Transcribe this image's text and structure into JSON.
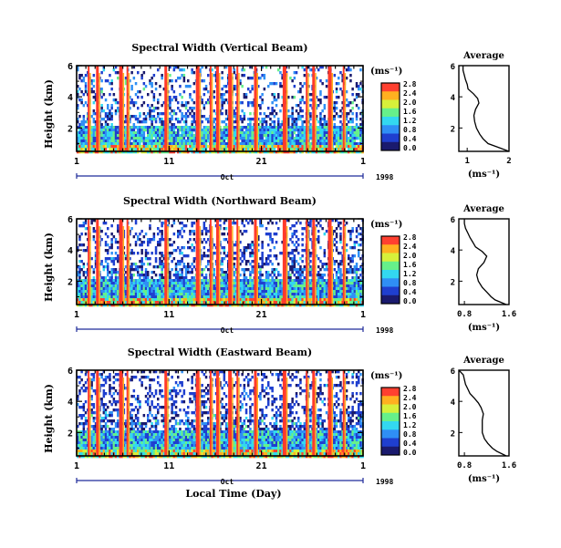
{
  "chart_data": [
    {
      "type": "heatmap",
      "title": "Spectral Width (Vertical Beam)",
      "ylabel": "Height (km)",
      "ylim": [
        0.5,
        6
      ],
      "y_ticks": [
        "6",
        "4",
        "2"
      ],
      "x_ticks": [
        "1",
        "11",
        "21",
        "1"
      ],
      "x_month": "Oct",
      "x_year": "1998",
      "colorbar": {
        "unit": "(ms⁻¹)",
        "labels": [
          "2.8",
          "2.4",
          "2.0",
          "1.6",
          "1.2",
          "0.8",
          "0.4",
          "0.0"
        ],
        "range": [
          0,
          2.8
        ]
      },
      "colors": [
        "#1a1a6e",
        "#1f3fcf",
        "#2f8ff5",
        "#33d8f0",
        "#66f08a",
        "#d7f03a",
        "#ffb020",
        "#ff4030"
      ],
      "rain_days": [
        2.2,
        3.1,
        5.6,
        6.4,
        10.5,
        13.9,
        15.4,
        16.1,
        17.4,
        18.3,
        20.2,
        23.3,
        25.8,
        26.5,
        28.2,
        29.8
      ],
      "average": {
        "title": "Average",
        "xlabel": "(ms⁻¹)",
        "xlim": [
          0.8,
          2.0
        ],
        "x_ticks": [
          "1",
          "2"
        ],
        "y_ticks": [
          "6",
          "4",
          "2"
        ],
        "profile": {
          "height": [
            0.5,
            0.8,
            1.0,
            1.3,
            1.6,
            2.0,
            2.4,
            2.8,
            3.2,
            3.6,
            3.9,
            4.2,
            4.5,
            4.8,
            5.1,
            5.4,
            5.7,
            6.0
          ],
          "width": [
            2.0,
            1.7,
            1.5,
            1.38,
            1.3,
            1.22,
            1.18,
            1.16,
            1.2,
            1.28,
            1.25,
            1.15,
            1.02,
            1.0,
            0.96,
            0.93,
            0.9,
            0.9
          ]
        }
      }
    },
    {
      "type": "heatmap",
      "title": "Spectral Width (Northward Beam)",
      "ylabel": "Height (km)",
      "ylim": [
        0.5,
        6
      ],
      "y_ticks": [
        "6",
        "4",
        "2"
      ],
      "x_ticks": [
        "1",
        "11",
        "21",
        "1"
      ],
      "x_month": "Oct",
      "x_year": "1998",
      "colorbar": {
        "unit": "(ms⁻¹)",
        "labels": [
          "2.8",
          "2.4",
          "2.0",
          "1.6",
          "1.2",
          "0.8",
          "0.4",
          "0.0"
        ],
        "range": [
          0,
          2.8
        ]
      },
      "colors": [
        "#1a1a6e",
        "#1f3fcf",
        "#2f8ff5",
        "#33d8f0",
        "#66f08a",
        "#d7f03a",
        "#ffb020",
        "#ff4030"
      ],
      "rain_days": [
        2.2,
        3.1,
        5.6,
        6.4,
        10.5,
        13.9,
        15.4,
        16.1,
        17.4,
        18.3,
        20.2,
        23.3,
        25.8,
        26.5,
        28.2,
        29.8
      ],
      "average": {
        "title": "Average",
        "xlabel": "(ms⁻¹)",
        "xlim": [
          0.7,
          1.6
        ],
        "x_ticks": [
          "0.8",
          "1.6"
        ],
        "y_ticks": [
          "6",
          "4",
          "2"
        ],
        "profile": {
          "height": [
            0.5,
            0.8,
            1.0,
            1.3,
            1.6,
            2.0,
            2.4,
            2.8,
            3.2,
            3.6,
            3.9,
            4.2,
            4.5,
            4.8,
            5.1,
            5.4,
            5.7,
            6.0
          ],
          "width": [
            1.55,
            1.35,
            1.28,
            1.2,
            1.12,
            1.05,
            1.02,
            1.05,
            1.15,
            1.2,
            1.12,
            1.0,
            0.95,
            0.9,
            0.86,
            0.82,
            0.8,
            0.8
          ]
        }
      }
    },
    {
      "type": "heatmap",
      "title": "Spectral Width (Eastward Beam)",
      "ylabel": "Height (km)",
      "xlabel": "Local Time (Day)",
      "ylim": [
        0.5,
        6
      ],
      "y_ticks": [
        "6",
        "4",
        "2"
      ],
      "x_ticks": [
        "1",
        "11",
        "21",
        "1"
      ],
      "x_month": "Oct",
      "x_year": "1998",
      "colorbar": {
        "unit": "(ms⁻¹)",
        "labels": [
          "2.8",
          "2.4",
          "2.0",
          "1.6",
          "1.2",
          "0.8",
          "0.4",
          "0.0"
        ],
        "range": [
          0,
          2.8
        ]
      },
      "colors": [
        "#1a1a6e",
        "#1f3fcf",
        "#2f8ff5",
        "#33d8f0",
        "#66f08a",
        "#d7f03a",
        "#ffb020",
        "#ff4030"
      ],
      "rain_days": [
        2.2,
        3.1,
        5.6,
        6.4,
        10.5,
        13.9,
        15.4,
        16.1,
        17.4,
        18.3,
        20.2,
        23.3,
        25.8,
        26.5,
        28.2,
        29.8
      ],
      "average": {
        "title": "Average",
        "xlabel": "(ms⁻¹)",
        "xlim": [
          0.7,
          1.6
        ],
        "x_ticks": [
          "0.8",
          "1.6"
        ],
        "y_ticks": [
          "6",
          "4",
          "2"
        ],
        "profile": {
          "height": [
            0.5,
            0.8,
            1.0,
            1.3,
            1.6,
            2.0,
            2.4,
            2.8,
            3.2,
            3.6,
            3.9,
            4.2,
            4.5,
            4.8,
            5.1,
            5.4,
            5.7,
            6.0
          ],
          "width": [
            1.55,
            1.38,
            1.3,
            1.22,
            1.16,
            1.12,
            1.12,
            1.12,
            1.14,
            1.1,
            1.05,
            0.98,
            0.9,
            0.86,
            0.82,
            0.8,
            0.78,
            0.7
          ]
        }
      }
    }
  ]
}
